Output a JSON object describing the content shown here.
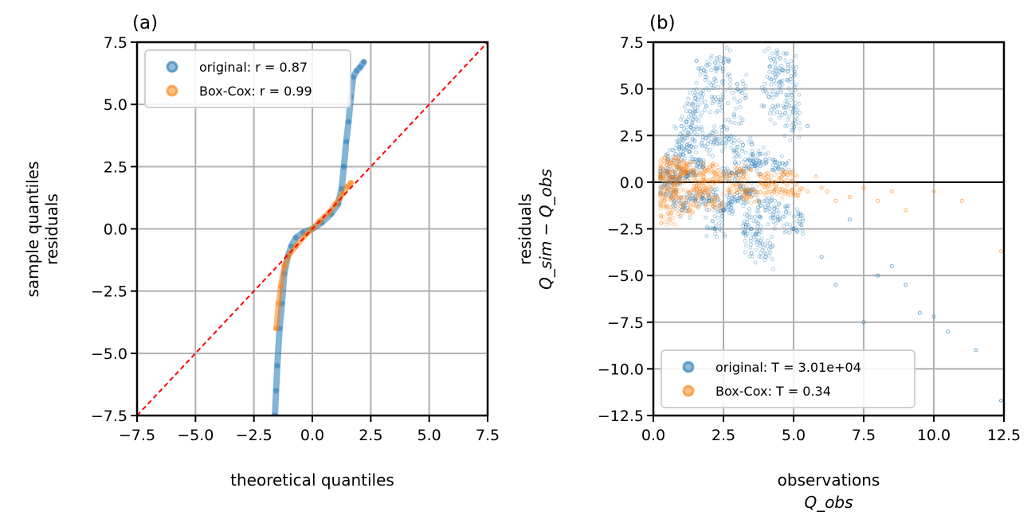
{
  "chart_data": [
    {
      "type": "scatter",
      "panel_label": "(a)",
      "xlabel": "theoretical quantiles",
      "ylabel": [
        "sample quantiles",
        "residuals"
      ],
      "xlim": [
        -7.5,
        7.5
      ],
      "ylim": [
        -7.5,
        7.5
      ],
      "xticks": [
        "−7.5",
        "−5.0",
        "−2.5",
        "0.0",
        "2.5",
        "5.0",
        "7.5"
      ],
      "yticks": [
        "7.5",
        "5.0",
        "2.5",
        "0.0",
        "−2.5",
        "−5.0",
        "−7.5"
      ],
      "grid": true,
      "legend": {
        "placement": "top-left",
        "entries": [
          "original:  r = 0.87",
          "Box-Cox: r = 0.99"
        ]
      },
      "reference_line": {
        "type": "y=x",
        "color": "#ff0000",
        "style": "dashed"
      },
      "series": [
        {
          "name": "original:  r = 0.87",
          "color": "#1f77b4",
          "points": [
            [
              -1.6,
              -7.5
            ],
            [
              -1.55,
              -6.5
            ],
            [
              -1.5,
              -5.5
            ],
            [
              -1.4,
              -4
            ],
            [
              -1.3,
              -3
            ],
            [
              -1.2,
              -1.8
            ],
            [
              -1.05,
              -1.1
            ],
            [
              -0.9,
              -0.7
            ],
            [
              -0.7,
              -0.35
            ],
            [
              -0.4,
              -0.15
            ],
            [
              0,
              0
            ],
            [
              0.4,
              0.25
            ],
            [
              0.8,
              0.6
            ],
            [
              1.1,
              1
            ],
            [
              1.25,
              1.6
            ],
            [
              1.35,
              2.5
            ],
            [
              1.45,
              3.5
            ],
            [
              1.55,
              4.3
            ],
            [
              1.65,
              5.3
            ],
            [
              1.75,
              6.1
            ],
            [
              1.9,
              6.35
            ],
            [
              2.05,
              6.5
            ],
            [
              2.2,
              6.7
            ]
          ]
        },
        {
          "name": "Box-Cox: r = 0.99",
          "color": "#ff7f0e",
          "points": [
            [
              -1.55,
              -4
            ],
            [
              -1.45,
              -3
            ],
            [
              -1.35,
              -2.3
            ],
            [
              -1.2,
              -1.5
            ],
            [
              -1,
              -1.05
            ],
            [
              -0.7,
              -0.7
            ],
            [
              -0.3,
              -0.25
            ],
            [
              0,
              0
            ],
            [
              0.3,
              0.3
            ],
            [
              0.7,
              0.65
            ],
            [
              1.0,
              1.0
            ],
            [
              1.3,
              1.4
            ],
            [
              1.5,
              1.7
            ],
            [
              1.65,
              1.85
            ]
          ]
        }
      ]
    },
    {
      "type": "scatter",
      "panel_label": "(b)",
      "xlabel": [
        "observations",
        "Q_obs"
      ],
      "ylabel": [
        "residuals",
        "Q_sim − Q_obs"
      ],
      "xlim": [
        0,
        12.5
      ],
      "ylim": [
        -12.5,
        7.5
      ],
      "xticks": [
        "0.0",
        "2.5",
        "5.0",
        "7.5",
        "10.0",
        "12.5"
      ],
      "yticks": [
        "7.5",
        "5.0",
        "2.5",
        "0.0",
        "−2.5",
        "−5.0",
        "−7.5",
        "−10.0",
        "−12.5"
      ],
      "grid": true,
      "zero_line": {
        "y": 0,
        "color": "#000000"
      },
      "legend": {
        "placement": "bottom-left",
        "entries": [
          "original:  T = 3.01e+04",
          "Box-Cox: T = 0.34"
        ]
      },
      "series": [
        {
          "name": "original:  T = 3.01e+04",
          "color": "#1f77b4",
          "points": [
            [
              0.5,
              0.5
            ],
            [
              0.8,
              1.5
            ],
            [
              1,
              3
            ],
            [
              1.2,
              2
            ],
            [
              1.3,
              3.8
            ],
            [
              1.5,
              4.5
            ],
            [
              1.6,
              1
            ],
            [
              1.8,
              6
            ],
            [
              2,
              2.5
            ],
            [
              2.2,
              6.4
            ],
            [
              2.5,
              6.4
            ],
            [
              2.5,
              3
            ],
            [
              3,
              5
            ],
            [
              3.2,
              2
            ],
            [
              3.5,
              1
            ],
            [
              3.8,
              1.5
            ],
            [
              4.2,
              5.5
            ],
            [
              4.3,
              6.6
            ],
            [
              4.6,
              6
            ],
            [
              4.8,
              6.3
            ],
            [
              5,
              4
            ],
            [
              5.5,
              3
            ],
            [
              4.5,
              1
            ],
            [
              0.5,
              -0.5
            ],
            [
              1,
              -1.5
            ],
            [
              1.5,
              -1
            ],
            [
              2,
              -1
            ],
            [
              2.5,
              -1.5
            ],
            [
              3,
              -1
            ],
            [
              3.5,
              -2.5
            ],
            [
              3.5,
              -3.8
            ],
            [
              4,
              -1.5
            ],
            [
              4,
              -4
            ],
            [
              4.5,
              -2
            ],
            [
              5,
              -2.5
            ],
            [
              6,
              -4
            ],
            [
              6.5,
              -5.5
            ],
            [
              7,
              -2
            ],
            [
              7.5,
              -7.5
            ],
            [
              8,
              -5
            ],
            [
              8.5,
              -4.5
            ],
            [
              9,
              -5.5
            ],
            [
              9.5,
              -7
            ],
            [
              10,
              -7.2
            ],
            [
              10.5,
              -8
            ],
            [
              11.5,
              -9
            ],
            [
              12.4,
              -11.7
            ],
            [
              1.2,
              0.5
            ],
            [
              0.7,
              0.2
            ],
            [
              2.8,
              0.5
            ],
            [
              3.3,
              -0.5
            ],
            [
              2.2,
              -2.5
            ]
          ]
        },
        {
          "name": "Box-Cox: T = 0.34",
          "color": "#ff7f0e",
          "points": [
            [
              0.3,
              0.5
            ],
            [
              0.4,
              -1
            ],
            [
              0.5,
              1.2
            ],
            [
              0.6,
              -2
            ],
            [
              0.8,
              0.3
            ],
            [
              1,
              -0.8
            ],
            [
              1.2,
              1
            ],
            [
              1.5,
              0.4
            ],
            [
              1.7,
              -0.5
            ],
            [
              2,
              0.8
            ],
            [
              2.2,
              -1.2
            ],
            [
              2.5,
              0.3
            ],
            [
              3,
              -0.4
            ],
            [
              3.2,
              0.6
            ],
            [
              3.5,
              -0.8
            ],
            [
              4,
              0.2
            ],
            [
              4.3,
              -0.5
            ],
            [
              4.8,
              0.4
            ],
            [
              5,
              -0.6
            ],
            [
              5.5,
              -0.5
            ],
            [
              5.8,
              0.3
            ],
            [
              6,
              -0.3
            ],
            [
              6.2,
              -0.5
            ],
            [
              6.5,
              -1
            ],
            [
              7,
              -0.8
            ],
            [
              7.5,
              -0.3
            ],
            [
              8,
              -1
            ],
            [
              8.5,
              -0.5
            ],
            [
              9,
              -1.5
            ],
            [
              10,
              -0.5
            ],
            [
              11,
              -1
            ],
            [
              12.4,
              -3.7
            ],
            [
              0.5,
              -0.3
            ],
            [
              0.9,
              0.9
            ],
            [
              1.3,
              -1.5
            ],
            [
              1.8,
              -0.2
            ]
          ]
        }
      ]
    }
  ]
}
